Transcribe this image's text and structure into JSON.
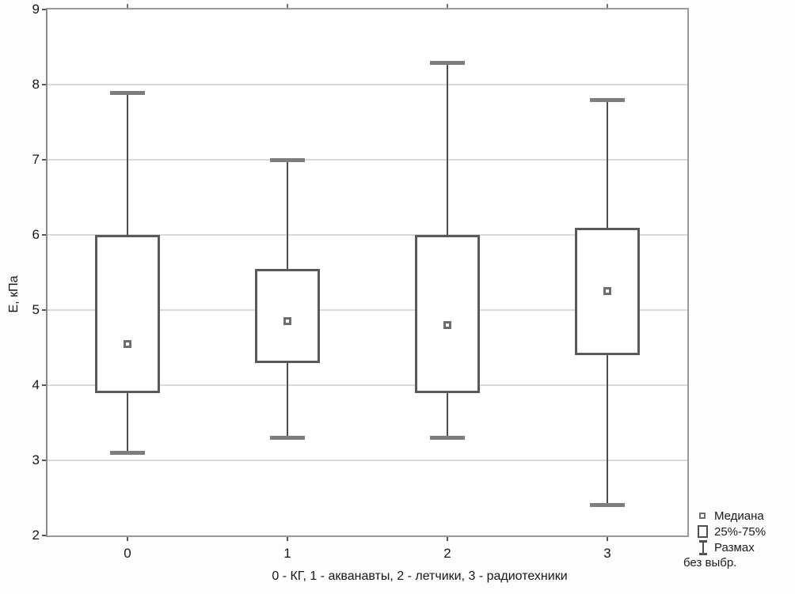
{
  "chart_data": {
    "type": "boxplot",
    "title": "",
    "ylabel": "Е, кПа",
    "xlabel": "0 - КГ, 1 - акванавты, 2 - летчики, 3 - радиотехники",
    "ylim": [
      2,
      9
    ],
    "yticks": [
      2,
      3,
      4,
      5,
      6,
      7,
      8,
      9
    ],
    "grid": "horizontal",
    "legend_position": "bottom-right",
    "categories": [
      "0",
      "1",
      "2",
      "3"
    ],
    "boxes": [
      {
        "category": "0",
        "label": "КГ",
        "whisker_low": 3.1,
        "q1": 3.9,
        "median": 4.55,
        "q3": 6.0,
        "whisker_high": 7.9
      },
      {
        "category": "1",
        "label": "акванавты",
        "whisker_low": 3.3,
        "q1": 4.3,
        "median": 4.85,
        "q3": 5.55,
        "whisker_high": 7.0
      },
      {
        "category": "2",
        "label": "летчики",
        "whisker_low": 3.3,
        "q1": 3.9,
        "median": 4.8,
        "q3": 6.0,
        "whisker_high": 8.3
      },
      {
        "category": "3",
        "label": "радиотехники",
        "whisker_low": 2.4,
        "q1": 4.4,
        "median": 5.25,
        "q3": 6.1,
        "whisker_high": 7.8
      }
    ]
  },
  "legend": {
    "median_label": "Медиана",
    "box_label": "25%-75%",
    "range_label": "Размах",
    "range_label_line2": "без выбр."
  },
  "colors": {
    "frame": "#9a9a9a",
    "gridline": "#dadada",
    "whisker_line": "#4d4d4d",
    "whisker_cap": "#7d7d7d",
    "box_border": "#5a5a5a",
    "box_fill": "#ffffff",
    "median_marker_border": "#6e6e6e",
    "text": "#161616"
  }
}
